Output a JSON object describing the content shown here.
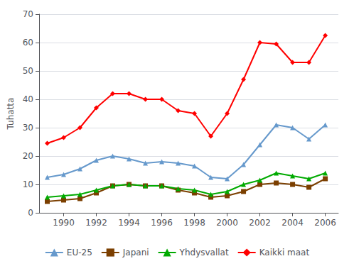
{
  "chart_data": {
    "type": "line",
    "ylabel": "Tuhatta",
    "x": [
      1989,
      1990,
      1991,
      1992,
      1993,
      1994,
      1995,
      1996,
      1997,
      1998,
      1999,
      2000,
      2001,
      2002,
      2003,
      2004,
      2005,
      2006
    ],
    "series": [
      {
        "name": "EU-25",
        "color": "#6699CC",
        "marker": "triangle",
        "values": [
          12.5,
          13.5,
          15.5,
          18.5,
          20.0,
          19.0,
          17.5,
          18.0,
          17.5,
          16.5,
          12.5,
          12.0,
          17.0,
          24.0,
          31.0,
          30.0,
          26.0,
          31.0
        ]
      },
      {
        "name": "Japani",
        "color": "#7B3F00",
        "marker": "square",
        "values": [
          4.0,
          4.5,
          5.0,
          7.0,
          9.5,
          10.0,
          9.5,
          9.5,
          8.0,
          7.0,
          5.5,
          6.0,
          7.5,
          10.0,
          10.5,
          10.0,
          9.0,
          12.0
        ]
      },
      {
        "name": "Yhdysvallat",
        "color": "#00AA00",
        "marker": "triangle",
        "values": [
          5.5,
          6.0,
          6.5,
          8.0,
          9.5,
          10.0,
          9.5,
          9.5,
          8.5,
          8.0,
          6.5,
          7.5,
          10.0,
          11.5,
          14.0,
          13.0,
          12.0,
          14.0
        ]
      },
      {
        "name": "Kaikki maat",
        "color": "#FF0000",
        "marker": "diamond",
        "values": [
          24.5,
          26.5,
          30.0,
          37.0,
          42.0,
          42.0,
          40.0,
          40.0,
          36.0,
          35.0,
          27.0,
          35.0,
          47.0,
          60.0,
          59.5,
          53.0,
          53.0,
          62.5
        ]
      }
    ],
    "xlim": [
      1988.5,
      2006.8
    ],
    "xticks": [
      1990,
      1992,
      1994,
      1996,
      1998,
      2000,
      2002,
      2004,
      2006
    ],
    "ylim": [
      0,
      70
    ],
    "yticks": [
      0,
      10,
      20,
      30,
      40,
      50,
      60,
      70
    ],
    "grid": true,
    "legend": "bottom"
  }
}
